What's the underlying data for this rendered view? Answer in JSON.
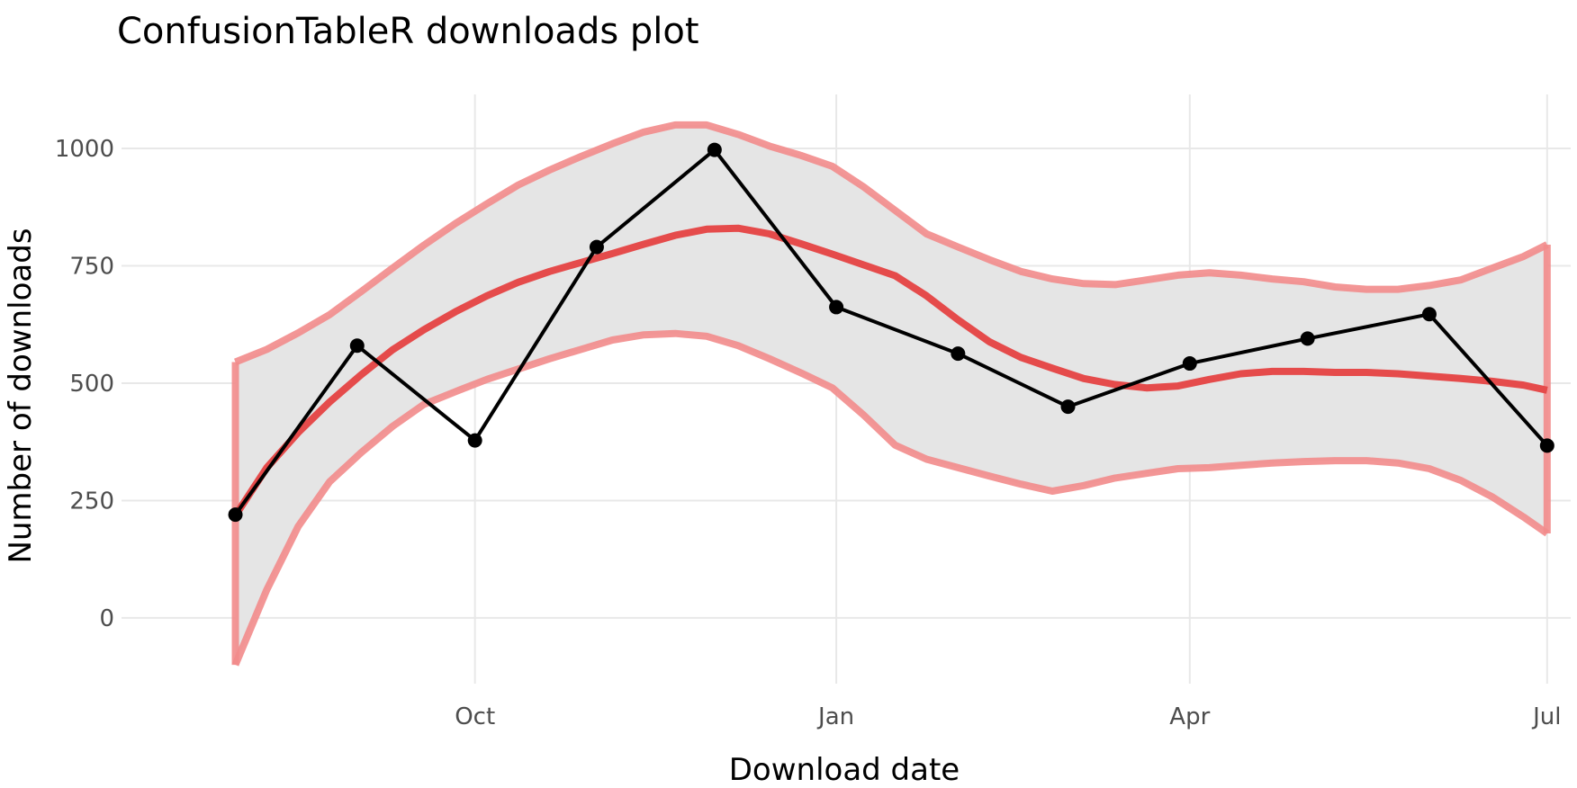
{
  "chart_data": {
    "type": "line",
    "title": "ConfusionTableR downloads plot",
    "xlabel": "Download date",
    "ylabel": "Number of downloads",
    "x_ticks": [
      "Oct",
      "Jan",
      "Apr",
      "Jul"
    ],
    "x_tick_dates": [
      "2021-10-01",
      "2022-01-01",
      "2022-04-01",
      "2022-07-01"
    ],
    "xlim": [
      "2021-07-03",
      "2022-07-07"
    ],
    "y_ticks": [
      0,
      250,
      500,
      750,
      1000
    ],
    "ylim": [
      -140,
      1115
    ],
    "grid": true,
    "colors": {
      "observed": "#000000",
      "smooth": "#e54b4b",
      "band_edge": "#f28b8b",
      "band_fill": "#e5e5e5",
      "grid": "#e8e8e8"
    },
    "series": [
      {
        "type": "line_points",
        "x": [
          "2021-08-01",
          "2021-09-01",
          "2021-10-01",
          "2021-11-01",
          "2021-12-01",
          "2022-01-01",
          "2022-02-01",
          "2022-03-01",
          "2022-04-01",
          "2022-05-01",
          "2022-06-01",
          "2022-07-01"
        ],
        "values": [
          220,
          580,
          378,
          790,
          997,
          662,
          563,
          450,
          542,
          595,
          647,
          367
        ]
      },
      {
        "type": "smooth",
        "x": [
          "2021-08-01",
          "2021-08-09",
          "2021-08-17",
          "2021-08-25",
          "2021-09-02",
          "2021-09-10",
          "2021-09-18",
          "2021-09-26",
          "2021-10-04",
          "2021-10-12",
          "2021-10-20",
          "2021-10-28",
          "2021-11-05",
          "2021-11-13",
          "2021-11-21",
          "2021-11-29",
          "2021-12-07",
          "2021-12-15",
          "2021-12-23",
          "2021-12-31",
          "2022-01-08",
          "2022-01-16",
          "2022-01-24",
          "2022-02-01",
          "2022-02-09",
          "2022-02-17",
          "2022-02-25",
          "2022-03-05",
          "2022-03-13",
          "2022-03-21",
          "2022-03-29",
          "2022-04-06",
          "2022-04-14",
          "2022-04-22",
          "2022-04-30",
          "2022-05-08",
          "2022-05-16",
          "2022-05-24",
          "2022-06-01",
          "2022-06-09",
          "2022-06-17",
          "2022-06-25",
          "2022-07-01"
        ],
        "values": [
          218,
          320,
          395,
          460,
          518,
          571,
          614,
          652,
          686,
          715,
          738,
          757,
          776,
          796,
          815,
          828,
          830,
          818,
          797,
          775,
          752,
          729,
          686,
          635,
          588,
          555,
          532,
          510,
          497,
          490,
          494,
          508,
          520,
          525,
          525,
          523,
          523,
          520,
          515,
          510,
          504,
          496,
          485
        ]
      },
      {
        "type": "band_upper",
        "x": [
          "2021-08-01",
          "2021-08-09",
          "2021-08-17",
          "2021-08-25",
          "2021-09-02",
          "2021-09-10",
          "2021-09-18",
          "2021-09-26",
          "2021-10-04",
          "2021-10-12",
          "2021-10-20",
          "2021-10-28",
          "2021-11-05",
          "2021-11-13",
          "2021-11-21",
          "2021-11-29",
          "2021-12-07",
          "2021-12-15",
          "2021-12-23",
          "2021-12-31",
          "2022-01-08",
          "2022-01-16",
          "2022-01-24",
          "2022-02-01",
          "2022-02-09",
          "2022-02-17",
          "2022-02-25",
          "2022-03-05",
          "2022-03-13",
          "2022-03-21",
          "2022-03-29",
          "2022-04-06",
          "2022-04-14",
          "2022-04-22",
          "2022-04-30",
          "2022-05-08",
          "2022-05-16",
          "2022-05-24",
          "2022-06-01",
          "2022-06-09",
          "2022-06-17",
          "2022-06-25",
          "2022-07-01"
        ],
        "values": [
          545,
          572,
          607,
          646,
          695,
          745,
          794,
          840,
          882,
          922,
          954,
          983,
          1010,
          1035,
          1050,
          1050,
          1030,
          1005,
          985,
          962,
          918,
          868,
          818,
          790,
          763,
          738,
          722,
          712,
          710,
          720,
          730,
          735,
          730,
          722,
          716,
          705,
          700,
          700,
          708,
          720,
          745,
          770,
          795
        ]
      },
      {
        "type": "band_lower",
        "x": [
          "2021-08-01",
          "2021-08-09",
          "2021-08-17",
          "2021-08-25",
          "2021-09-02",
          "2021-09-10",
          "2021-09-18",
          "2021-09-26",
          "2021-10-04",
          "2021-10-12",
          "2021-10-20",
          "2021-10-28",
          "2021-11-05",
          "2021-11-13",
          "2021-11-21",
          "2021-11-29",
          "2021-12-07",
          "2021-12-15",
          "2021-12-23",
          "2021-12-31",
          "2022-01-08",
          "2022-01-16",
          "2022-01-24",
          "2022-02-01",
          "2022-02-09",
          "2022-02-17",
          "2022-02-25",
          "2022-03-05",
          "2022-03-13",
          "2022-03-21",
          "2022-03-29",
          "2022-04-06",
          "2022-04-14",
          "2022-04-22",
          "2022-04-30",
          "2022-05-08",
          "2022-05-16",
          "2022-05-24",
          "2022-06-01",
          "2022-06-09",
          "2022-06-17",
          "2022-06-25",
          "2022-07-01"
        ],
        "values": [
          -100,
          60,
          195,
          290,
          352,
          408,
          455,
          482,
          508,
          530,
          552,
          572,
          592,
          603,
          606,
          600,
          580,
          552,
          522,
          490,
          432,
          368,
          338,
          320,
          302,
          285,
          270,
          282,
          298,
          308,
          318,
          320,
          325,
          330,
          333,
          335,
          335,
          330,
          318,
          293,
          258,
          215,
          180
        ]
      }
    ]
  }
}
